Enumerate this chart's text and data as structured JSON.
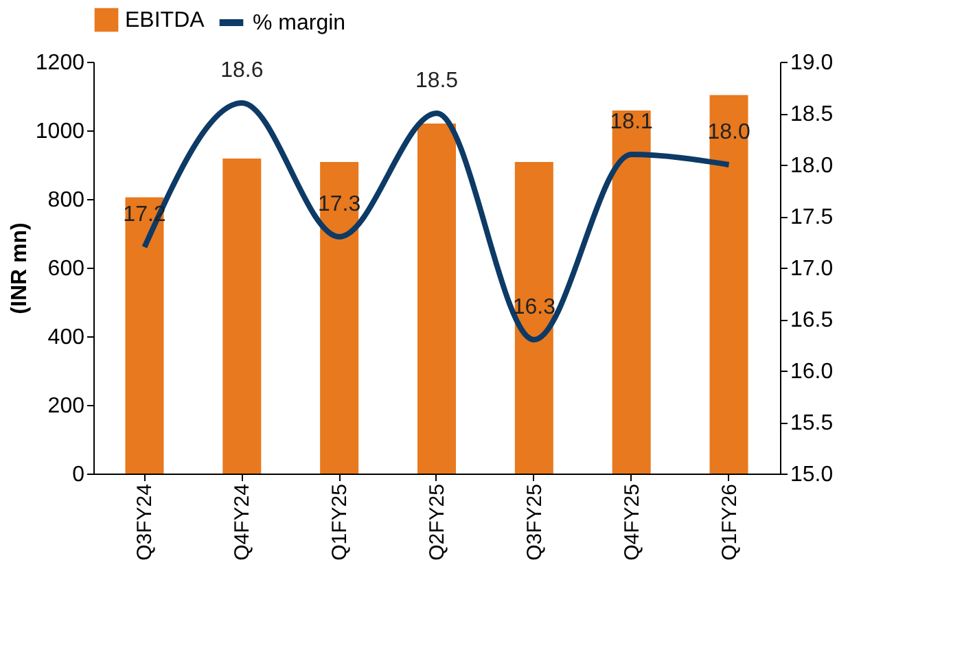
{
  "chart_data": {
    "type": "bar",
    "ylabel": "(INR mn)",
    "categories": [
      "Q3FY24",
      "Q4FY24",
      "Q1FY25",
      "Q2FY25",
      "Q3FY25",
      "Q4FY25",
      "Q1FY26"
    ],
    "series": [
      {
        "name": "EBITDA",
        "color": "#e8791e",
        "values": [
          805,
          918,
          908,
          1020,
          908,
          1058,
          1103
        ]
      },
      {
        "name": "% margin",
        "type": "line",
        "axis": "y2",
        "color": "#0d3a66",
        "values": [
          17.2,
          18.6,
          17.3,
          18.5,
          16.3,
          18.1,
          18.0
        ],
        "value_labels": [
          "17.2",
          "18.6",
          "17.3",
          "18.5",
          "16.3",
          "18.1",
          "18.0"
        ]
      }
    ],
    "ylim": [
      0,
      1200
    ],
    "yticks": [
      0,
      200,
      400,
      600,
      800,
      1000,
      1200
    ],
    "y2lim": [
      15,
      19
    ],
    "y2ticks": [
      {
        "value": 15,
        "label": "15.0"
      },
      {
        "value": 15.5,
        "label": "15.5"
      },
      {
        "value": 16,
        "label": "16.0"
      },
      {
        "value": 16.5,
        "label": "16.5"
      },
      {
        "value": 17,
        "label": "17.0"
      },
      {
        "value": 17.5,
        "label": "17.5"
      },
      {
        "value": 18,
        "label": "18.0"
      },
      {
        "value": 18.5,
        "label": "18.5"
      },
      {
        "value": 19,
        "label": "19.0"
      }
    ],
    "legend": "top",
    "grid": false
  }
}
